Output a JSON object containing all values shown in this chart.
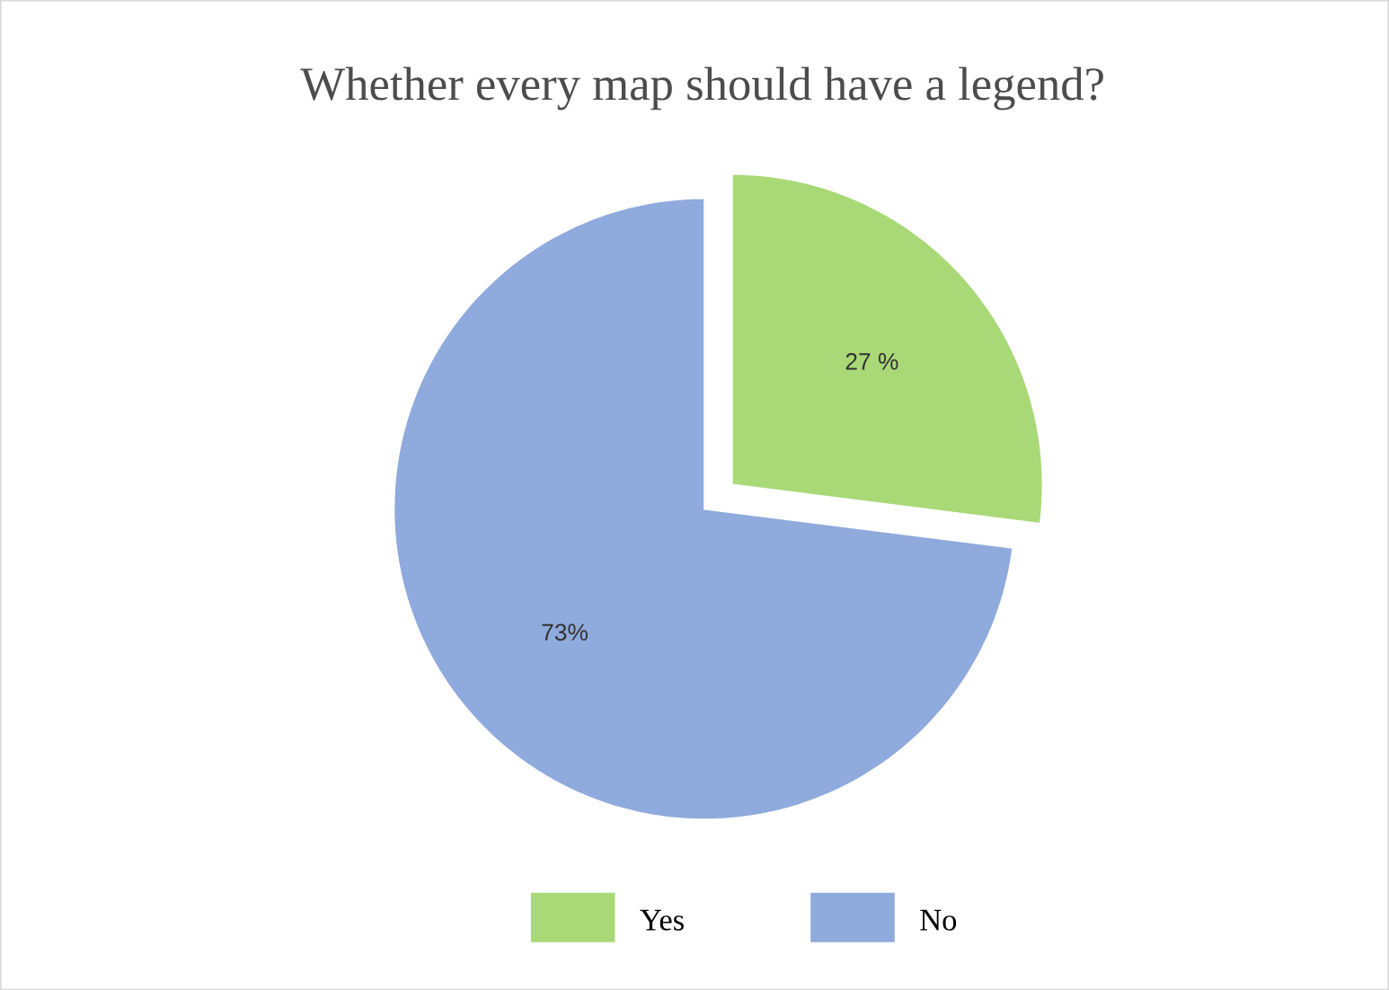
{
  "chart_data": {
    "type": "pie",
    "title": "Whether every map should have a legend?",
    "categories": [
      "Yes",
      "No"
    ],
    "values": [
      27,
      73
    ],
    "value_labels": [
      "27 %",
      "73%"
    ],
    "colors": [
      "#a9d977",
      "#8faadc"
    ],
    "legend": "bottom"
  }
}
